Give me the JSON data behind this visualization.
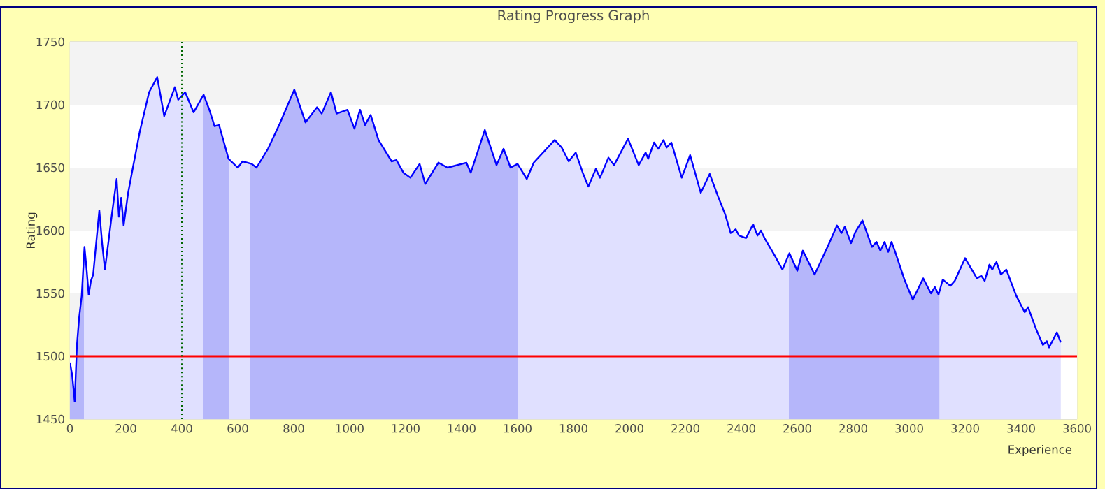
{
  "chart_data": {
    "type": "area",
    "title": "Rating Progress Graph",
    "xlabel": "Experience",
    "ylabel": "Rating",
    "xlim": [
      0,
      3600
    ],
    "ylim": [
      1450,
      1750
    ],
    "xticks": [
      0,
      200,
      400,
      600,
      800,
      1000,
      1200,
      1400,
      1600,
      1800,
      2000,
      2200,
      2400,
      2600,
      2800,
      3000,
      3200,
      3400,
      3600
    ],
    "yticks": [
      1450,
      1500,
      1550,
      1600,
      1650,
      1700,
      1750
    ],
    "grid": "y",
    "series": [
      {
        "color": "#0000ff",
        "x": [
          0,
          8,
          17,
          25,
          33,
          42,
          52,
          60,
          67,
          75,
          83,
          105,
          115,
          125,
          150,
          167,
          175,
          183,
          192,
          208,
          225,
          250,
          283,
          312,
          337,
          375,
          387,
          412,
          442,
          478,
          500,
          517,
          533,
          567,
          600,
          617,
          650,
          667,
          708,
          750,
          802,
          842,
          883,
          900,
          933,
          953,
          992,
          1017,
          1037,
          1055,
          1075,
          1103,
          1150,
          1167,
          1192,
          1217,
          1250,
          1270,
          1317,
          1350,
          1417,
          1433,
          1483,
          1525,
          1550,
          1575,
          1600,
          1633,
          1658,
          1733,
          1758,
          1783,
          1808,
          1833,
          1853,
          1880,
          1895,
          1925,
          1945,
          1995,
          2033,
          2058,
          2067,
          2088,
          2103,
          2122,
          2133,
          2150,
          2187,
          2217,
          2255,
          2287,
          2317,
          2342,
          2362,
          2380,
          2392,
          2417,
          2442,
          2458,
          2470,
          2483,
          2517,
          2547,
          2572,
          2600,
          2620,
          2662,
          2708,
          2742,
          2758,
          2770,
          2792,
          2808,
          2833,
          2867,
          2883,
          2897,
          2912,
          2925,
          2937,
          2950,
          2983,
          3013,
          3050,
          3078,
          3092,
          3105,
          3120,
          3147,
          3163,
          3200,
          3242,
          3258,
          3270,
          3287,
          3297,
          3312,
          3328,
          3347,
          3383,
          3413,
          3425,
          3453,
          3478,
          3492,
          3500,
          3528,
          3542
        ],
        "values": [
          1495,
          1485,
          1464,
          1509,
          1531,
          1548,
          1587,
          1568,
          1549,
          1560,
          1565,
          1616,
          1590,
          1569,
          1613,
          1641,
          1611,
          1626,
          1604,
          1630,
          1650,
          1679,
          1710,
          1722,
          1691,
          1714,
          1704,
          1710,
          1694,
          1708,
          1695,
          1683,
          1684,
          1657,
          1650,
          1655,
          1653,
          1650,
          1665,
          1685,
          1712,
          1686,
          1698,
          1693,
          1710,
          1693,
          1696,
          1681,
          1696,
          1684,
          1692,
          1672,
          1655,
          1656,
          1646,
          1642,
          1653,
          1637,
          1654,
          1650,
          1654,
          1646,
          1680,
          1652,
          1665,
          1650,
          1653,
          1641,
          1654,
          1672,
          1666,
          1655,
          1662,
          1646,
          1635,
          1649,
          1642,
          1658,
          1652,
          1673,
          1652,
          1662,
          1657,
          1670,
          1665,
          1672,
          1666,
          1670,
          1642,
          1660,
          1630,
          1645,
          1627,
          1613,
          1598,
          1601,
          1596,
          1594,
          1605,
          1596,
          1600,
          1594,
          1581,
          1569,
          1582,
          1568,
          1584,
          1565,
          1587,
          1604,
          1598,
          1603,
          1590,
          1599,
          1608,
          1587,
          1591,
          1584,
          1591,
          1583,
          1591,
          1583,
          1561,
          1545,
          1562,
          1550,
          1555,
          1549,
          1561,
          1556,
          1560,
          1578,
          1562,
          1564,
          1560,
          1573,
          1569,
          1575,
          1565,
          1569,
          1548,
          1535,
          1539,
          1522,
          1509,
          1512,
          1507,
          1519,
          1511
        ]
      }
    ],
    "ref_lines": [
      {
        "axis": "y",
        "value": 1500,
        "color": "#ff0000",
        "line_style": "solid"
      },
      {
        "axis": "x",
        "value": 400,
        "color": "#006600",
        "line_style": "dotted"
      }
    ],
    "bands": [
      {
        "axis": "x",
        "from": 0,
        "to": 50,
        "color": "#cfd0fa"
      },
      {
        "axis": "x",
        "from": 475,
        "to": 570,
        "color": "#cfd0fa"
      },
      {
        "axis": "x",
        "from": 645,
        "to": 1600,
        "color": "#cfd0fa"
      },
      {
        "axis": "x",
        "from": 2570,
        "to": 3108,
        "color": "#cfd0fa"
      }
    ]
  }
}
